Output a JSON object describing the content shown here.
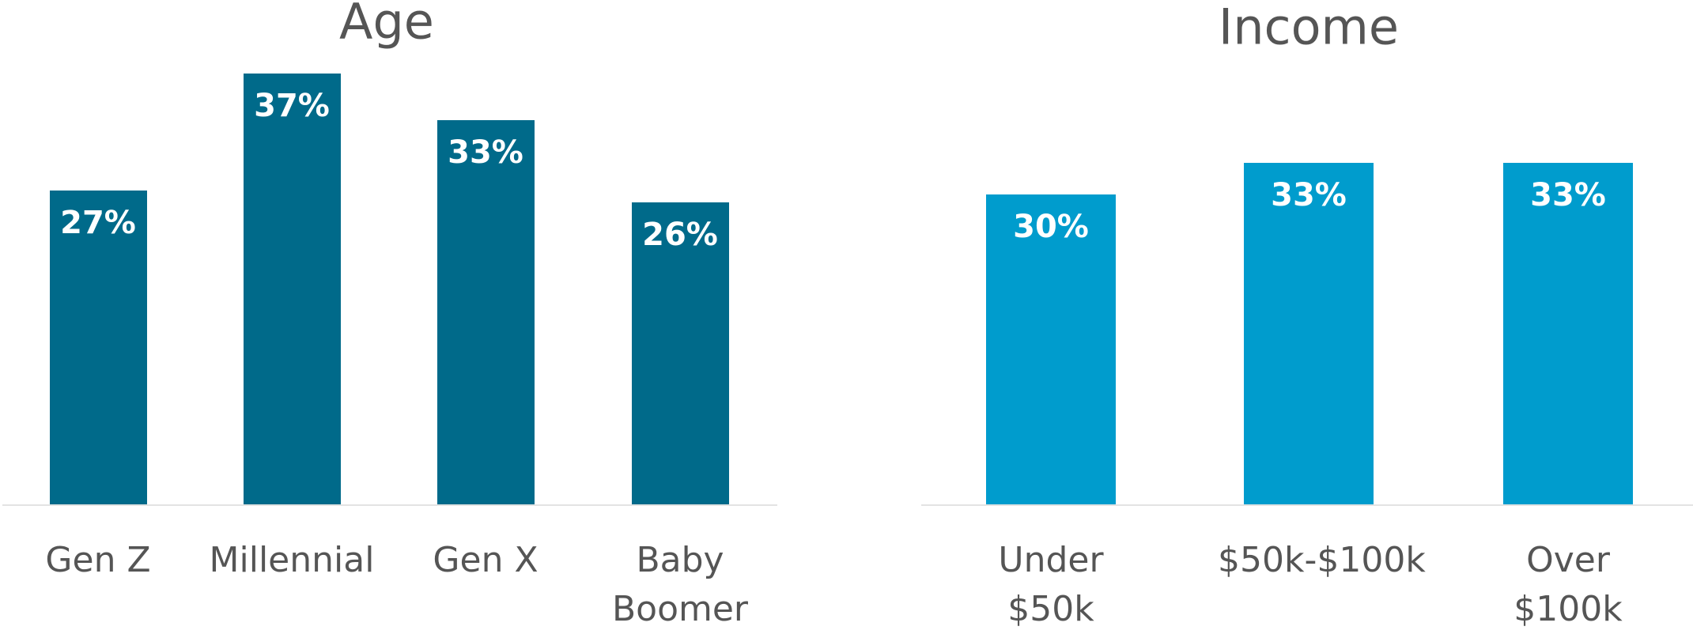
{
  "chart_data": [
    {
      "type": "bar",
      "title": "Age",
      "categories": [
        "Gen Z",
        "Millennial",
        "Gen X",
        "Baby Boomer"
      ],
      "values": [
        27,
        37,
        33,
        26
      ],
      "value_labels": [
        "27%",
        "37%",
        "33%",
        "26%"
      ],
      "color": "#006a8a",
      "ylim": [
        0,
        40
      ]
    },
    {
      "type": "bar",
      "title": "Income",
      "categories": [
        "Under $50k",
        "$50k-$100k",
        "Over $100k"
      ],
      "values": [
        30,
        33,
        33
      ],
      "value_labels": [
        "30%",
        "33%",
        "33%"
      ],
      "color": "#009ccd",
      "ylim": [
        0,
        45
      ]
    }
  ]
}
